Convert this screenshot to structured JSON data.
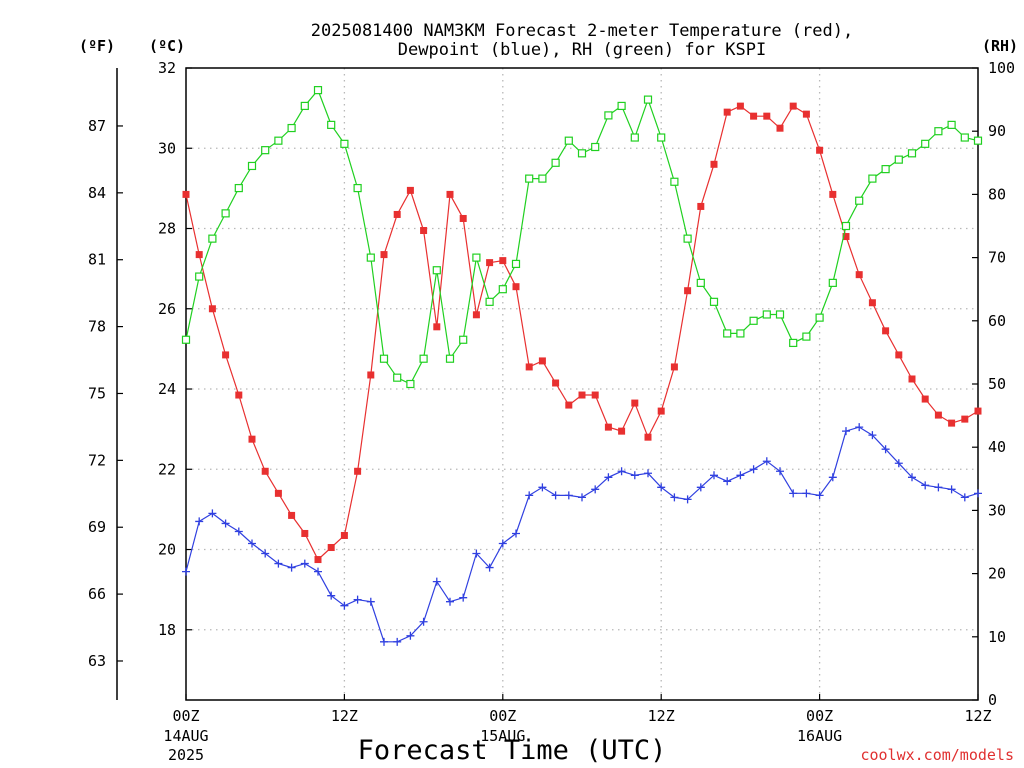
{
  "chart_data": {
    "type": "line",
    "title": "2025081400 NAM3KM Forecast 2-meter Temperature (red),",
    "subtitle": "Dewpoint (blue), RH (green) for KSPI",
    "xlabel": "Forecast Time (UTC)",
    "left_unit_f": "(ºF)",
    "left_unit_c": "(ºC)",
    "right_unit": "(RH)",
    "credit": "coolwx.com/models",
    "x_range_hours": [
      0,
      60
    ],
    "ylim_c": [
      16.25,
      32
    ],
    "ylim_rh": [
      0,
      100
    ],
    "grid": true,
    "x_ticks": [
      {
        "hour": 0,
        "label": "00Z",
        "sub1": "14AUG",
        "sub2": "2025"
      },
      {
        "hour": 12,
        "label": "12Z",
        "sub1": "",
        "sub2": ""
      },
      {
        "hour": 24,
        "label": "00Z",
        "sub1": "15AUG",
        "sub2": ""
      },
      {
        "hour": 36,
        "label": "12Z",
        "sub1": "",
        "sub2": ""
      },
      {
        "hour": 48,
        "label": "00Z",
        "sub1": "16AUG",
        "sub2": ""
      },
      {
        "hour": 60,
        "label": "12Z",
        "sub1": "",
        "sub2": ""
      }
    ],
    "y_ticks_c": [
      18,
      20,
      22,
      24,
      26,
      28,
      30,
      32
    ],
    "y_ticks_f": [
      63,
      66,
      69,
      72,
      75,
      78,
      81,
      84,
      87
    ],
    "y_ticks_rh": [
      0,
      10,
      20,
      30,
      40,
      50,
      60,
      70,
      80,
      90,
      100
    ],
    "hours": [
      0,
      1,
      2,
      3,
      4,
      5,
      6,
      7,
      8,
      9,
      10,
      11,
      12,
      13,
      14,
      15,
      16,
      17,
      18,
      19,
      20,
      21,
      22,
      23,
      24,
      25,
      26,
      27,
      28,
      29,
      30,
      31,
      32,
      33,
      34,
      35,
      36,
      37,
      38,
      39,
      40,
      41,
      42,
      43,
      44,
      45,
      46,
      47,
      48,
      49,
      50,
      51,
      52,
      53,
      54,
      55,
      56,
      57,
      58,
      59,
      60
    ],
    "series": [
      {
        "name": "Temperature",
        "color": "#e83030",
        "marker": "filled-square",
        "values": [
          28.85,
          27.35,
          26.0,
          24.85,
          23.85,
          22.75,
          21.95,
          21.4,
          20.85,
          20.4,
          19.75,
          20.05,
          20.35,
          21.95,
          24.35,
          27.35,
          28.35,
          28.95,
          27.95,
          25.55,
          28.85,
          28.25,
          25.85,
          27.15,
          27.2,
          26.55,
          24.55,
          24.7,
          24.15,
          23.6,
          23.85,
          23.85,
          23.05,
          22.95,
          23.65,
          22.8,
          23.45,
          24.55,
          26.45,
          28.55,
          29.6,
          30.9,
          31.05,
          30.8,
          30.8,
          30.5,
          31.05,
          30.85,
          29.95,
          28.85,
          27.8,
          26.85,
          26.15,
          25.45,
          24.85,
          24.25,
          23.75,
          23.35,
          23.15,
          23.25,
          23.45
        ]
      },
      {
        "name": "Dewpoint",
        "color": "#3040e0",
        "marker": "plus",
        "values": [
          19.45,
          20.7,
          20.9,
          20.65,
          20.45,
          20.15,
          19.9,
          19.65,
          19.55,
          19.65,
          19.45,
          18.85,
          18.6,
          18.75,
          18.7,
          17.7,
          17.7,
          17.85,
          18.2,
          19.2,
          18.7,
          18.8,
          19.9,
          19.55,
          20.15,
          20.4,
          21.35,
          21.55,
          21.35,
          21.35,
          21.3,
          21.5,
          21.8,
          21.95,
          21.85,
          21.9,
          21.55,
          21.3,
          21.25,
          21.55,
          21.85,
          21.7,
          21.85,
          22.0,
          22.2,
          21.95,
          21.4,
          21.4,
          21.35,
          21.8,
          22.95,
          23.05,
          22.85,
          22.5,
          22.15,
          21.8,
          21.6,
          21.55,
          21.5,
          21.3,
          21.4
        ]
      },
      {
        "name": "RH",
        "color": "#20d020",
        "marker": "open-square",
        "values": [
          57,
          67,
          73,
          77,
          81,
          84.5,
          87,
          88.5,
          90.5,
          94,
          96.5,
          91,
          88,
          81,
          70,
          54,
          51,
          50,
          54,
          68,
          54,
          57,
          70,
          63,
          65,
          69,
          82.5,
          82.5,
          85,
          88.5,
          86.5,
          87.5,
          92.5,
          94,
          89,
          95,
          89,
          82,
          73,
          66,
          63,
          58,
          58,
          60,
          61,
          61,
          56.5,
          57.5,
          60.5,
          66,
          75,
          79,
          82.5,
          84,
          85.5,
          86.5,
          88,
          90,
          91,
          89,
          88.5
        ]
      }
    ]
  }
}
